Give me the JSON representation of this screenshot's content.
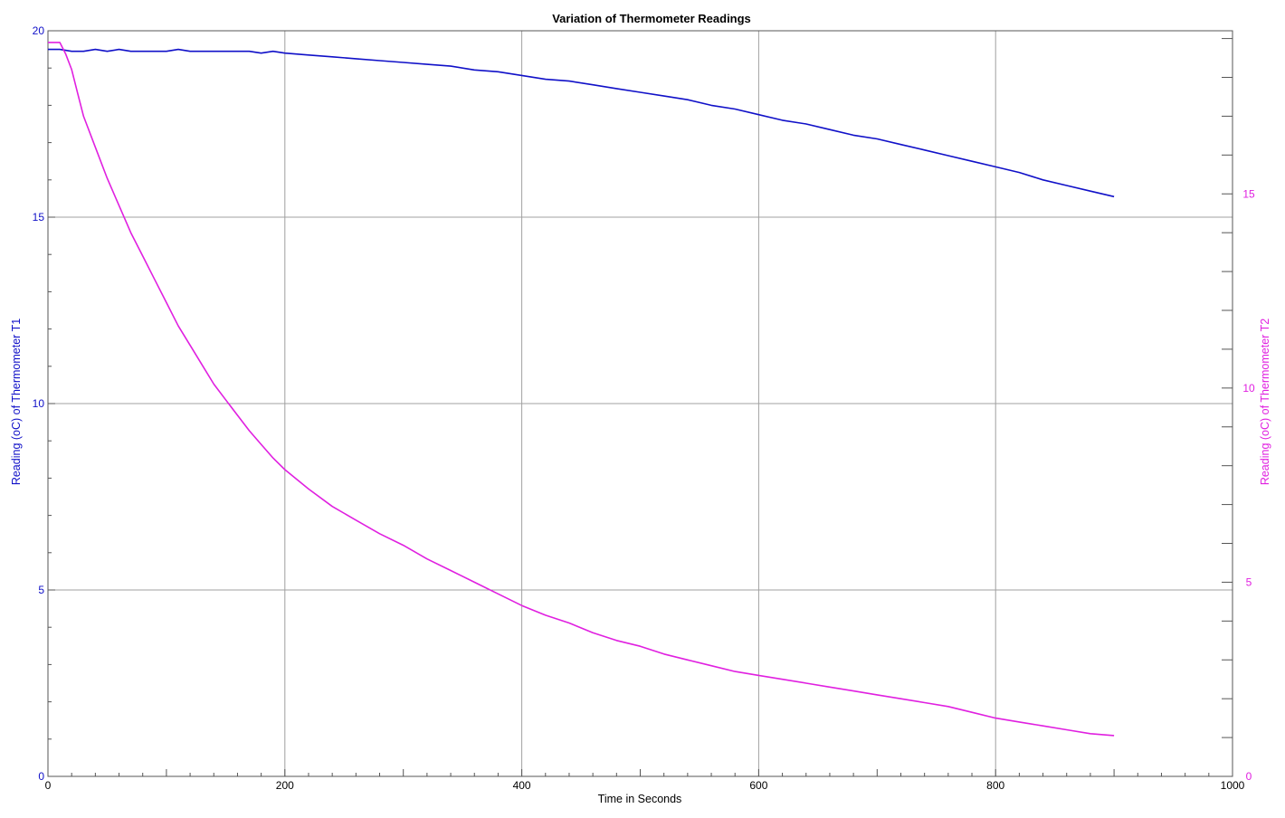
{
  "chart_data": {
    "type": "line",
    "title": "Variation of Thermometer Readings",
    "xlabel": "Time in Seconds",
    "ylabel_left": "Reading (oC) of Thermometer T1",
    "ylabel_right": "Reading (oC) of Thermometer T2",
    "xlim": [
      0,
      1000
    ],
    "ylim_left": [
      0,
      20
    ],
    "ylim_right": [
      0,
      19.2
    ],
    "x_ticks": [
      0,
      200,
      400,
      600,
      800,
      1000
    ],
    "y_left_ticks": [
      0,
      5,
      10,
      15,
      20
    ],
    "y_right_ticks": [
      0,
      5,
      10,
      15
    ],
    "grid": true,
    "colors": {
      "t1": "#1010c8",
      "t2": "#e020e0",
      "grid": "#a0a0a0",
      "axis": "#555555"
    },
    "series": [
      {
        "name": "Thermometer T1",
        "axis": "left",
        "x": [
          0,
          10,
          20,
          30,
          40,
          50,
          60,
          70,
          80,
          90,
          100,
          110,
          120,
          130,
          140,
          150,
          160,
          170,
          180,
          190,
          200,
          220,
          240,
          260,
          280,
          300,
          320,
          340,
          360,
          380,
          400,
          420,
          440,
          460,
          480,
          500,
          520,
          540,
          560,
          580,
          600,
          620,
          640,
          660,
          680,
          700,
          720,
          740,
          760,
          780,
          800,
          820,
          840,
          860,
          880,
          900
        ],
        "y": [
          19.5,
          19.5,
          19.45,
          19.45,
          19.5,
          19.45,
          19.5,
          19.45,
          19.45,
          19.45,
          19.45,
          19.5,
          19.45,
          19.45,
          19.45,
          19.45,
          19.45,
          19.45,
          19.4,
          19.45,
          19.4,
          19.35,
          19.3,
          19.25,
          19.2,
          19.15,
          19.1,
          19.05,
          18.95,
          18.9,
          18.8,
          18.7,
          18.65,
          18.55,
          18.45,
          18.35,
          18.25,
          18.15,
          18.0,
          17.9,
          17.75,
          17.6,
          17.5,
          17.35,
          17.2,
          17.1,
          16.95,
          16.8,
          16.65,
          16.5,
          16.35,
          16.2,
          16.0,
          15.85,
          15.7,
          15.55
        ]
      },
      {
        "name": "Thermometer T2",
        "axis": "right",
        "x": [
          0,
          10,
          15,
          20,
          25,
          30,
          40,
          50,
          60,
          70,
          80,
          90,
          100,
          110,
          120,
          130,
          140,
          150,
          160,
          170,
          180,
          190,
          200,
          220,
          240,
          260,
          280,
          300,
          320,
          340,
          360,
          380,
          400,
          420,
          440,
          460,
          480,
          500,
          520,
          540,
          560,
          580,
          600,
          620,
          640,
          660,
          680,
          700,
          720,
          740,
          760,
          780,
          800,
          820,
          840,
          860,
          880,
          900
        ],
        "y": [
          18.9,
          18.9,
          18.6,
          18.2,
          17.6,
          17.0,
          16.2,
          15.4,
          14.7,
          14.0,
          13.4,
          12.8,
          12.2,
          11.6,
          11.1,
          10.6,
          10.1,
          9.7,
          9.3,
          8.9,
          8.55,
          8.2,
          7.9,
          7.4,
          6.95,
          6.6,
          6.25,
          5.95,
          5.6,
          5.3,
          5.0,
          4.7,
          4.4,
          4.15,
          3.95,
          3.7,
          3.5,
          3.35,
          3.15,
          3.0,
          2.85,
          2.7,
          2.6,
          2.5,
          2.4,
          2.3,
          2.2,
          2.1,
          2.0,
          1.9,
          1.8,
          1.65,
          1.5,
          1.4,
          1.3,
          1.2,
          1.1,
          1.05
        ]
      }
    ]
  }
}
